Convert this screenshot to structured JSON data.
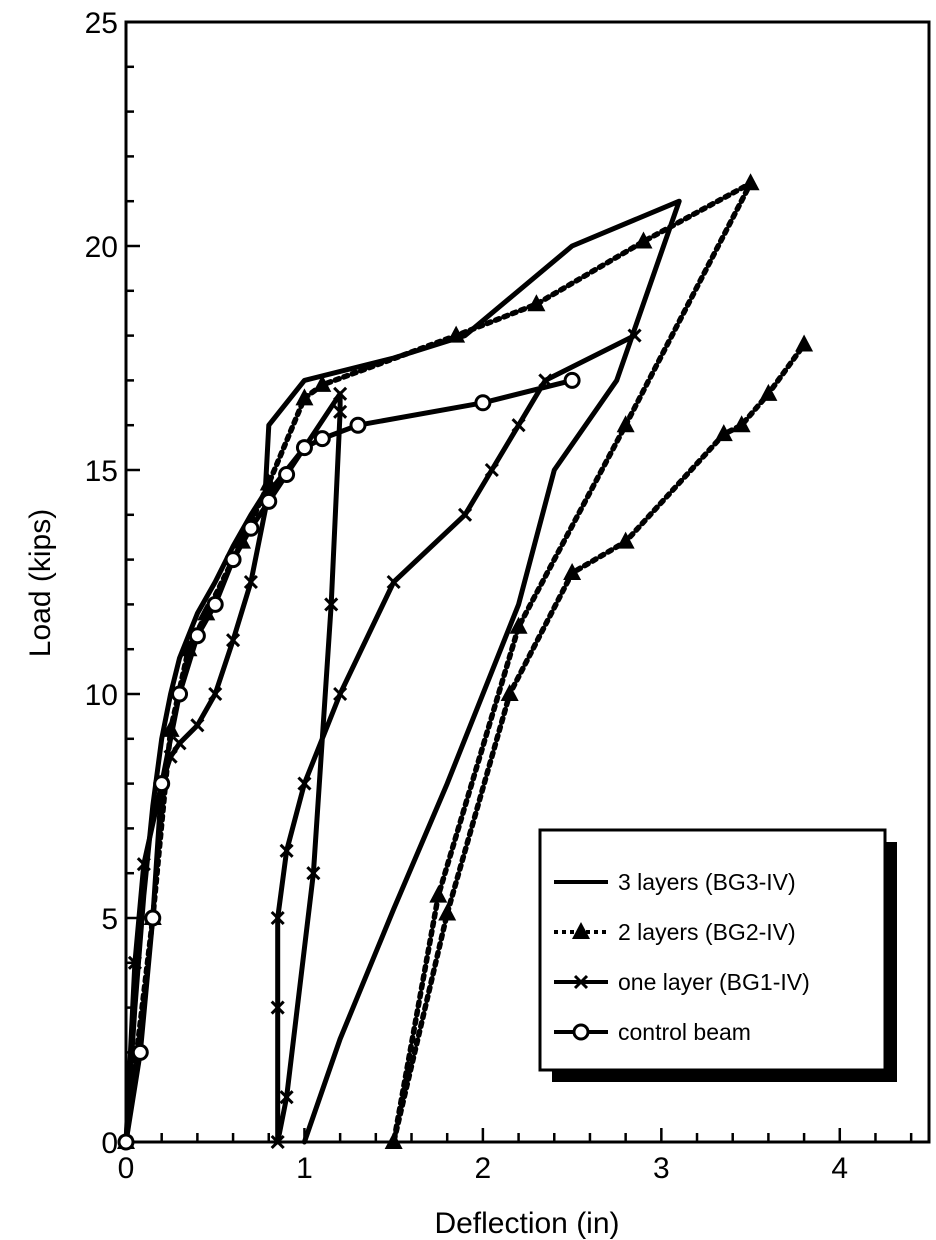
{
  "chart_data": {
    "type": "line",
    "title": "",
    "xlabel": "Deflection (in)",
    "ylabel": "Load (kips)",
    "xlim": [
      0,
      4.5
    ],
    "ylim": [
      0,
      25
    ],
    "xticks": [
      0,
      1,
      2,
      3,
      4
    ],
    "yticks": [
      0,
      5,
      10,
      15,
      20,
      25
    ],
    "grid": false,
    "legend_position": "bottom-right",
    "series": [
      {
        "name": "3 layers (BG3-IV)",
        "style": "solid",
        "marker": "none",
        "color": "#000000",
        "x": [
          0,
          0.05,
          0.1,
          0.15,
          0.2,
          0.25,
          0.3,
          0.4,
          0.5,
          0.6,
          0.7,
          0.78,
          0.8,
          1.0,
          1.5,
          1.9,
          2.5,
          3.1,
          2.75,
          2.4,
          2.2,
          1.8,
          1.5,
          1.2,
          1.0
        ],
        "y": [
          0,
          3,
          5.5,
          7.5,
          9,
          10,
          10.8,
          11.8,
          12.5,
          13.3,
          14,
          14.5,
          16,
          17,
          17.5,
          18,
          20,
          21,
          17,
          15,
          12,
          8,
          5.2,
          2.3,
          0
        ]
      },
      {
        "name": "2 layers (BG2-IV)",
        "style": "dotted",
        "marker": "triangle",
        "color": "#000000",
        "x": [
          0,
          0.15,
          0.25,
          0.35,
          0.45,
          0.65,
          0.8,
          1.0,
          1.1,
          1.85,
          2.3,
          2.9,
          3.5,
          2.8,
          2.2,
          1.75,
          1.5,
          1.8,
          2.15,
          2.5,
          2.8,
          3.35,
          3.45,
          3.6,
          3.8
        ],
        "y": [
          0,
          5,
          9.2,
          11,
          11.8,
          13.4,
          14.7,
          16.6,
          16.9,
          18,
          18.7,
          20.1,
          21.4,
          16,
          11.5,
          5.5,
          0,
          5.1,
          10,
          12.7,
          13.4,
          15.8,
          16,
          16.7,
          17.8
        ]
      },
      {
        "name": "one layer (BG1-IV)",
        "style": "solid",
        "marker": "x",
        "color": "#000000",
        "x": [
          0,
          0.05,
          0.1,
          0.2,
          0.25,
          0.3,
          0.4,
          0.5,
          0.6,
          0.7,
          0.8,
          1.0,
          1.2,
          1.2,
          1.15,
          1.05,
          0.9,
          0.85,
          0.85,
          0.85,
          0.9,
          1.0,
          1.2,
          1.5,
          1.9,
          2.05,
          2.2,
          2.35,
          2.85
        ],
        "y": [
          0,
          4,
          6.2,
          8,
          8.6,
          8.9,
          9.3,
          10,
          11.2,
          12.5,
          14.5,
          15.5,
          16.7,
          16.3,
          12,
          6,
          1,
          0,
          3,
          5,
          6.5,
          8,
          10,
          12.5,
          14,
          15,
          16,
          17,
          18
        ]
      },
      {
        "name": "control beam",
        "style": "solid",
        "marker": "circle",
        "color": "#000000",
        "x": [
          0,
          0.08,
          0.15,
          0.2,
          0.3,
          0.4,
          0.5,
          0.6,
          0.7,
          0.8,
          0.9,
          1.0,
          1.1,
          1.3,
          2.0,
          2.5
        ],
        "y": [
          0,
          2,
          5,
          8,
          10,
          11.3,
          12,
          13,
          13.7,
          14.3,
          14.9,
          15.5,
          15.7,
          16,
          16.5,
          17
        ]
      }
    ]
  }
}
